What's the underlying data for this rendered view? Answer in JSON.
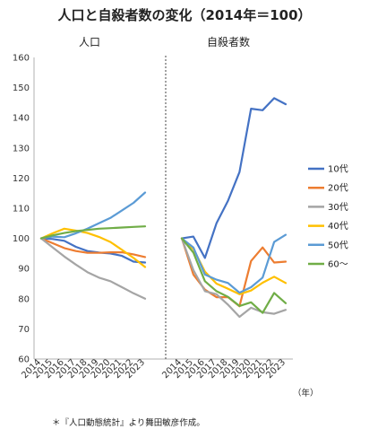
{
  "chart_data": {
    "type": "line",
    "title": "人口と自殺者数の変化（2014年＝100）",
    "unit_label": "（年）",
    "note": "＊『人口動態統計』より舞田敏彦作成。",
    "ylim": [
      60,
      160
    ],
    "yticks": [
      60,
      70,
      80,
      90,
      100,
      110,
      120,
      130,
      140,
      150,
      160
    ],
    "grid": false,
    "legend_position": "right",
    "series_meta": [
      {
        "name": "10代",
        "color": "#4472C4"
      },
      {
        "name": "20代",
        "color": "#ED7D31"
      },
      {
        "name": "30代",
        "color": "#A5A5A5"
      },
      {
        "name": "40代",
        "color": "#FFC000"
      },
      {
        "name": "50代",
        "color": "#5B9BD5"
      },
      {
        "name": "60～",
        "color": "#70AD47"
      }
    ],
    "panels": [
      {
        "title": "人口",
        "x": [
          "2014",
          "2015",
          "2016",
          "2017",
          "2018",
          "2019",
          "2020",
          "2021",
          "2022",
          "2023"
        ],
        "series": [
          {
            "name": "10代",
            "values": [
              100,
              99.8,
              99.2,
              97.2,
              95.8,
              95.3,
              95,
              94.2,
              92.3,
              92
            ]
          },
          {
            "name": "20代",
            "values": [
              100,
              98.4,
              96.8,
              95.8,
              95.2,
              95.2,
              95.4,
              95.4,
              94.7,
              93.8
            ]
          },
          {
            "name": "30代",
            "values": [
              100,
              97,
              94,
              91.3,
              88.8,
              87,
              85.8,
              83.8,
              81.8,
              80
            ]
          },
          {
            "name": "40代",
            "values": [
              100,
              101.7,
              103.2,
              102.6,
              101.8,
              100.5,
              98.8,
              96.2,
              93.5,
              90.5
            ]
          },
          {
            "name": "50代",
            "values": [
              100,
              100.6,
              100.4,
              101.7,
              103.2,
              105,
              106.8,
              109.3,
              111.8,
              115.2
            ]
          },
          {
            "name": "60～",
            "values": [
              100,
              101,
              101.8,
              102.4,
              102.8,
              103.2,
              103.4,
              103.6,
              103.8,
              104
            ]
          }
        ]
      },
      {
        "title": "自殺者数",
        "x": [
          "2014",
          "2015",
          "2016",
          "2017",
          "2018",
          "2019",
          "2020",
          "2021",
          "2022",
          "2023"
        ],
        "series": [
          {
            "name": "10代",
            "values": [
              100,
              100.6,
              93.5,
              105,
              112.5,
              122,
              143,
              142.5,
              146.5,
              144.5
            ]
          },
          {
            "name": "20代",
            "values": [
              100,
              88,
              83,
              80.5,
              80.5,
              77.5,
              92.5,
              97,
              92,
              92.3
            ]
          },
          {
            "name": "30代",
            "values": [
              100,
              89.5,
              82.5,
              81.5,
              78,
              74,
              77,
              75.5,
              75,
              76.3
            ]
          },
          {
            "name": "40代",
            "values": [
              100,
              96.5,
              89,
              85,
              83.3,
              81.5,
              82.7,
              85.3,
              87.3,
              85.2
            ]
          },
          {
            "name": "50代",
            "values": [
              100,
              97,
              88,
              86.3,
              85.2,
              82,
              83.8,
              87,
              98.8,
              101.2
            ]
          },
          {
            "name": "60～",
            "values": [
              100,
              95.3,
              85.8,
              82.5,
              80.6,
              77.6,
              78.8,
              75.3,
              81.9,
              78.5
            ]
          }
        ]
      }
    ]
  }
}
